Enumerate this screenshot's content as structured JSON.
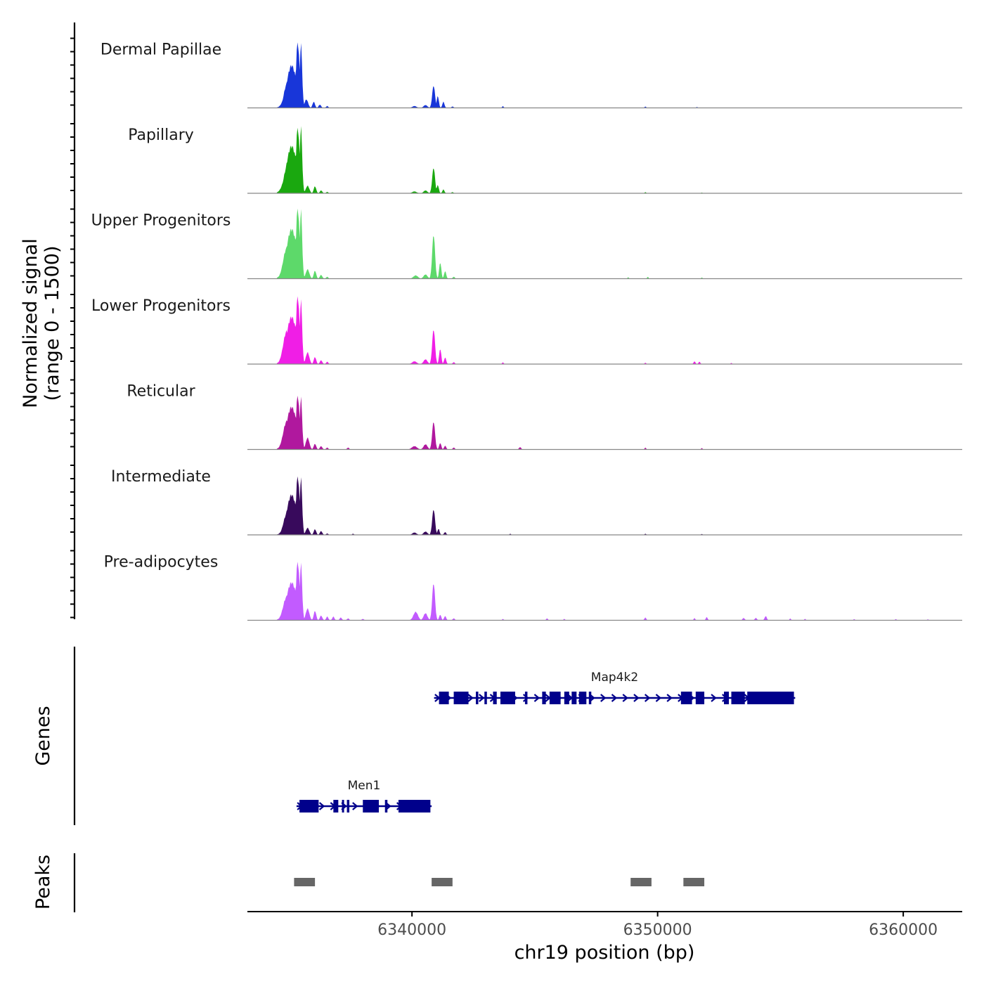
{
  "chart_data": {
    "type": "area",
    "title": "",
    "ylabel_line1": "Normalized signal",
    "ylabel_line2": "(range 0 - 1500)",
    "xlabel": "chr19 position (bp)",
    "ylim": [
      0,
      1500
    ],
    "xlim": [
      6333300,
      6362400
    ],
    "x_ticks": [
      6340000,
      6350000,
      6360000
    ],
    "x_tick_labels": [
      "6340000",
      "6350000",
      "6360000"
    ],
    "series": [
      {
        "name": "Dermal Papillae",
        "color": "#1836d9",
        "peaks": [
          [
            6334900,
            160,
            500
          ],
          [
            6335100,
            280,
            900
          ],
          [
            6335350,
            100,
            1400
          ],
          [
            6335480,
            70,
            1350
          ],
          [
            6335700,
            100,
            180
          ],
          [
            6336000,
            70,
            130
          ],
          [
            6336250,
            70,
            70
          ],
          [
            6336550,
            60,
            40
          ],
          [
            6340100,
            120,
            40
          ],
          [
            6340550,
            110,
            60
          ],
          [
            6340880,
            80,
            480
          ],
          [
            6341050,
            60,
            260
          ],
          [
            6341280,
            60,
            130
          ],
          [
            6341650,
            60,
            30
          ],
          [
            6343700,
            40,
            40
          ],
          [
            6349500,
            40,
            30
          ],
          [
            6351600,
            40,
            20
          ]
        ]
      },
      {
        "name": "Papillary",
        "color": "#1aa80f",
        "peaks": [
          [
            6334900,
            170,
            550
          ],
          [
            6335100,
            300,
            1000
          ],
          [
            6335350,
            100,
            1400
          ],
          [
            6335480,
            70,
            1400
          ],
          [
            6335750,
            100,
            160
          ],
          [
            6336050,
            70,
            150
          ],
          [
            6336300,
            70,
            60
          ],
          [
            6336550,
            60,
            30
          ],
          [
            6340100,
            130,
            40
          ],
          [
            6340550,
            110,
            60
          ],
          [
            6340880,
            80,
            550
          ],
          [
            6341050,
            60,
            180
          ],
          [
            6341280,
            60,
            80
          ],
          [
            6341650,
            60,
            25
          ],
          [
            6349500,
            40,
            25
          ],
          [
            6351800,
            40,
            15
          ]
        ]
      },
      {
        "name": "Upper Progenitors",
        "color": "#5dd96a",
        "peaks": [
          [
            6334900,
            200,
            650
          ],
          [
            6335100,
            300,
            1050
          ],
          [
            6335350,
            100,
            1500
          ],
          [
            6335480,
            70,
            1450
          ],
          [
            6335750,
            100,
            200
          ],
          [
            6336050,
            70,
            170
          ],
          [
            6336300,
            70,
            80
          ],
          [
            6336550,
            60,
            40
          ],
          [
            6340150,
            130,
            70
          ],
          [
            6340550,
            110,
            90
          ],
          [
            6340880,
            80,
            950
          ],
          [
            6341150,
            60,
            350
          ],
          [
            6341350,
            60,
            160
          ],
          [
            6341700,
            60,
            40
          ],
          [
            6348800,
            40,
            30
          ],
          [
            6349600,
            40,
            40
          ],
          [
            6351800,
            40,
            25
          ]
        ]
      },
      {
        "name": "Lower Progenitors",
        "color": "#f01ee6",
        "peaks": [
          [
            6334900,
            200,
            700
          ],
          [
            6335100,
            300,
            1000
          ],
          [
            6335350,
            100,
            1450
          ],
          [
            6335480,
            70,
            1350
          ],
          [
            6335750,
            100,
            250
          ],
          [
            6336050,
            70,
            150
          ],
          [
            6336300,
            70,
            80
          ],
          [
            6336550,
            60,
            50
          ],
          [
            6340100,
            130,
            60
          ],
          [
            6340550,
            110,
            100
          ],
          [
            6340880,
            80,
            750
          ],
          [
            6341150,
            60,
            330
          ],
          [
            6341350,
            60,
            140
          ],
          [
            6341700,
            60,
            40
          ],
          [
            6343700,
            40,
            40
          ],
          [
            6349500,
            40,
            30
          ],
          [
            6351500,
            50,
            60
          ],
          [
            6351700,
            50,
            50
          ],
          [
            6353000,
            40,
            25
          ]
        ]
      },
      {
        "name": "Reticular",
        "color": "#b0189e",
        "peaks": [
          [
            6334900,
            200,
            600
          ],
          [
            6335100,
            300,
            900
          ],
          [
            6335350,
            100,
            1150
          ],
          [
            6335480,
            70,
            1100
          ],
          [
            6335750,
            100,
            250
          ],
          [
            6336050,
            70,
            120
          ],
          [
            6336300,
            70,
            70
          ],
          [
            6336550,
            60,
            40
          ],
          [
            6337400,
            60,
            40
          ],
          [
            6340100,
            150,
            70
          ],
          [
            6340550,
            110,
            110
          ],
          [
            6340880,
            80,
            600
          ],
          [
            6341150,
            60,
            140
          ],
          [
            6341350,
            60,
            80
          ],
          [
            6341700,
            60,
            40
          ],
          [
            6344400,
            60,
            50
          ],
          [
            6349500,
            40,
            40
          ],
          [
            6351800,
            40,
            30
          ]
        ]
      },
      {
        "name": "Intermediate",
        "color": "#380a5c",
        "peaks": [
          [
            6334900,
            180,
            450
          ],
          [
            6335100,
            280,
            850
          ],
          [
            6335350,
            100,
            1250
          ],
          [
            6335480,
            70,
            1200
          ],
          [
            6335750,
            100,
            150
          ],
          [
            6336050,
            70,
            120
          ],
          [
            6336300,
            70,
            80
          ],
          [
            6336550,
            60,
            30
          ],
          [
            6337600,
            50,
            25
          ],
          [
            6340100,
            120,
            50
          ],
          [
            6340550,
            110,
            70
          ],
          [
            6340880,
            80,
            550
          ],
          [
            6341080,
            60,
            130
          ],
          [
            6341350,
            60,
            60
          ],
          [
            6344000,
            40,
            25
          ],
          [
            6349500,
            40,
            25
          ],
          [
            6351800,
            40,
            20
          ]
        ]
      },
      {
        "name": "Pre-adipocytes",
        "color": "#c25bff",
        "peaks": [
          [
            6334900,
            200,
            500
          ],
          [
            6335100,
            300,
            800
          ],
          [
            6335350,
            100,
            1250
          ],
          [
            6335480,
            70,
            1200
          ],
          [
            6335750,
            100,
            250
          ],
          [
            6336050,
            70,
            200
          ],
          [
            6336300,
            70,
            100
          ],
          [
            6336550,
            60,
            80
          ],
          [
            6336800,
            60,
            80
          ],
          [
            6337100,
            60,
            60
          ],
          [
            6337400,
            60,
            40
          ],
          [
            6338000,
            60,
            30
          ],
          [
            6340150,
            130,
            180
          ],
          [
            6340550,
            110,
            150
          ],
          [
            6340880,
            80,
            800
          ],
          [
            6341150,
            60,
            120
          ],
          [
            6341350,
            60,
            90
          ],
          [
            6341700,
            60,
            40
          ],
          [
            6343700,
            40,
            30
          ],
          [
            6345500,
            50,
            40
          ],
          [
            6346200,
            40,
            30
          ],
          [
            6349500,
            50,
            60
          ],
          [
            6351500,
            40,
            50
          ],
          [
            6352000,
            50,
            70
          ],
          [
            6353500,
            60,
            50
          ],
          [
            6354000,
            60,
            50
          ],
          [
            6354400,
            60,
            90
          ],
          [
            6355400,
            40,
            40
          ],
          [
            6356000,
            40,
            30
          ],
          [
            6358000,
            40,
            25
          ],
          [
            6359700,
            40,
            25
          ],
          [
            6361000,
            40,
            20
          ]
        ]
      }
    ],
    "genes": [
      {
        "name": "Men1",
        "strand": "+",
        "start": 6335300,
        "end": 6340800,
        "row": 2,
        "exons": [
          [
            6335420,
            6336200
          ],
          [
            6336800,
            6337000
          ],
          [
            6337150,
            6337230
          ],
          [
            6337350,
            6337450
          ],
          [
            6338000,
            6338650
          ],
          [
            6338900,
            6339000
          ],
          [
            6339450,
            6340750
          ]
        ]
      },
      {
        "name": "Map4k2",
        "strand": "+",
        "start": 6340900,
        "end": 6355600,
        "row": 1,
        "exons": [
          [
            6341100,
            6341500
          ],
          [
            6341700,
            6342300
          ],
          [
            6342600,
            6342700
          ],
          [
            6342950,
            6343050
          ],
          [
            6343300,
            6343450
          ],
          [
            6343600,
            6344200
          ],
          [
            6344600,
            6344700
          ],
          [
            6345300,
            6345450
          ],
          [
            6345600,
            6346050
          ],
          [
            6346200,
            6346400
          ],
          [
            6346500,
            6346700
          ],
          [
            6346800,
            6347100
          ],
          [
            6347200,
            6347300
          ],
          [
            6350950,
            6351400
          ],
          [
            6351550,
            6351900
          ],
          [
            6352700,
            6352900
          ],
          [
            6353000,
            6353550
          ],
          [
            6353650,
            6355550
          ]
        ]
      }
    ],
    "peaks_track": [
      [
        6335200,
        6336050
      ],
      [
        6340800,
        6341650
      ],
      [
        6348900,
        6349750
      ],
      [
        6351050,
        6351900
      ]
    ],
    "genes_label": "Genes",
    "peaks_label": "Peaks"
  },
  "colors": {
    "gene": "#00008b",
    "peak": "#666666",
    "baseline": "#888888"
  }
}
